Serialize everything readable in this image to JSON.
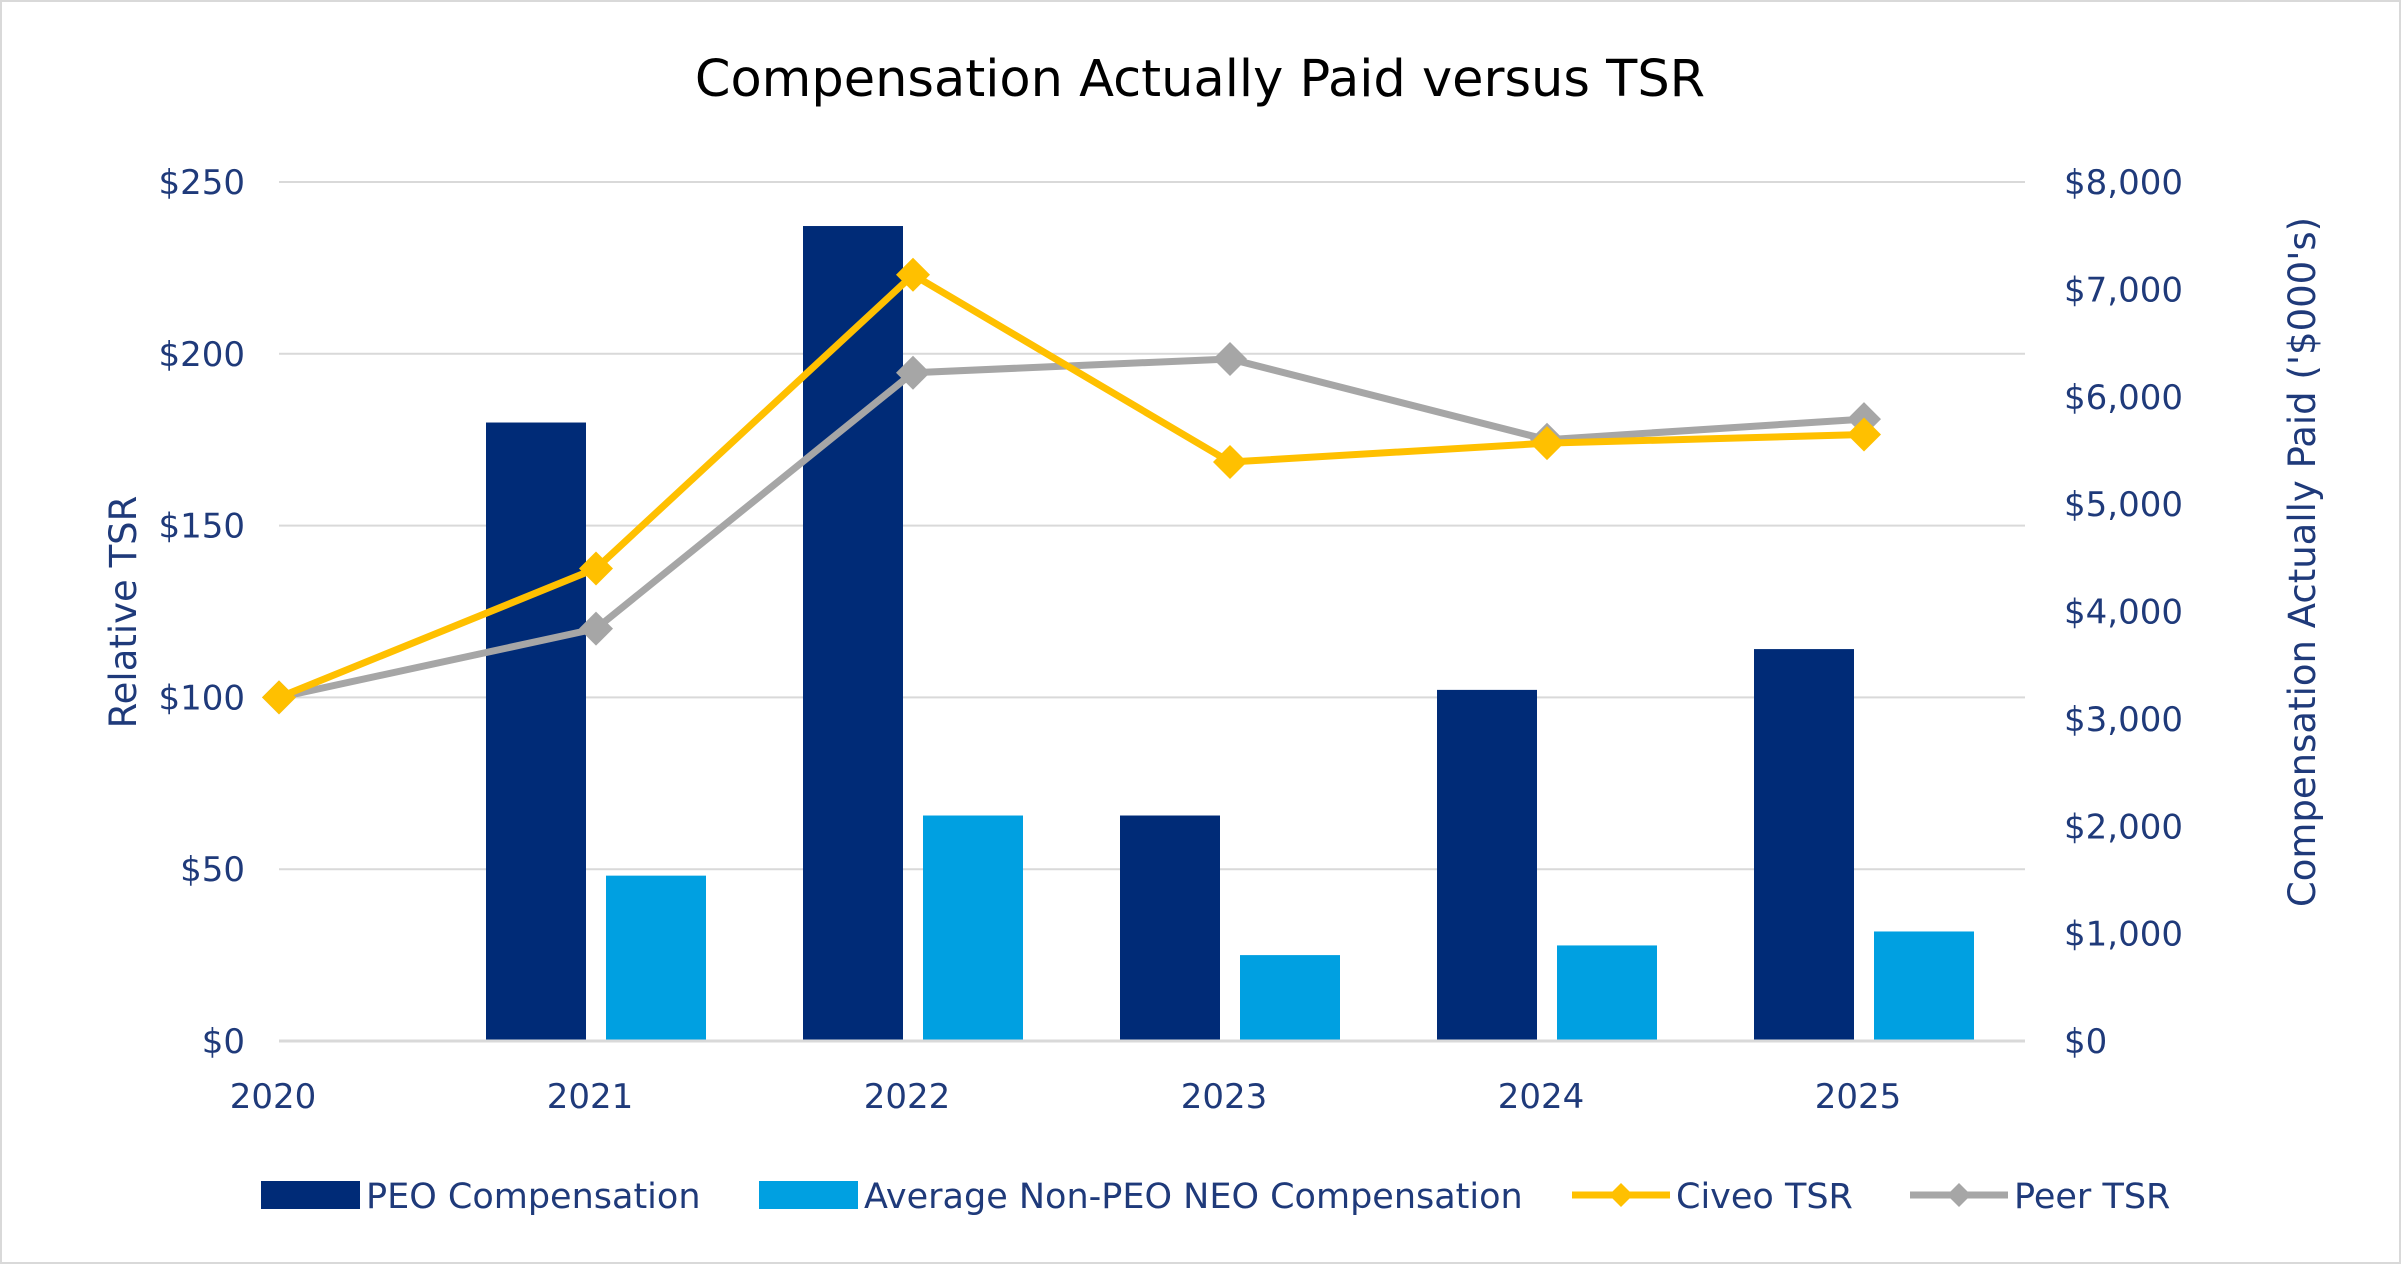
{
  "colors": {
    "text": "#1f3a7a",
    "grid": "#d9d9d9",
    "peo": "#002b77",
    "neo": "#00a0e1",
    "civeo": "#ffc000",
    "peer": "#a6a6a6"
  },
  "chart_data": {
    "type": "bar",
    "title": "Compensation Actually Paid versus TSR",
    "categories": [
      "2020",
      "2021",
      "2022",
      "2023",
      "2024",
      "2025"
    ],
    "y_left": {
      "label": "Relative TSR",
      "range": [
        0,
        250
      ],
      "ticks": [
        "$0",
        "$50",
        "$100",
        "$150",
        "$200",
        "$250"
      ]
    },
    "y_right": {
      "label": "Compensation Actually Paid ('$000's)",
      "range": [
        0,
        8000
      ],
      "ticks": [
        "$0",
        "$1,000",
        "$2,000",
        "$3,000",
        "$4,000",
        "$5,000",
        "$6,000",
        "$7,000",
        "$8,000"
      ]
    },
    "grid": true,
    "legend_position": "bottom",
    "series": [
      {
        "name": "PEO Compensation",
        "kind": "bar",
        "axis": "right",
        "color": "#002b77",
        "values": [
          null,
          5760,
          7590,
          2100,
          3270,
          3650
        ]
      },
      {
        "name": "Average Non-PEO NEO Compensation",
        "kind": "bar",
        "axis": "right",
        "color": "#00a0e1",
        "values": [
          null,
          1540,
          2100,
          800,
          890,
          1020
        ]
      },
      {
        "name": "Civeo TSR",
        "kind": "line",
        "axis": "left",
        "color": "#ffc000",
        "marker": "diamond",
        "values": [
          100,
          137.5,
          223,
          168.5,
          174,
          176.5
        ]
      },
      {
        "name": "Peer TSR",
        "kind": "line",
        "axis": "left",
        "color": "#a6a6a6",
        "marker": "diamond",
        "values": [
          100,
          120,
          194.5,
          198.5,
          175,
          181
        ]
      }
    ]
  }
}
